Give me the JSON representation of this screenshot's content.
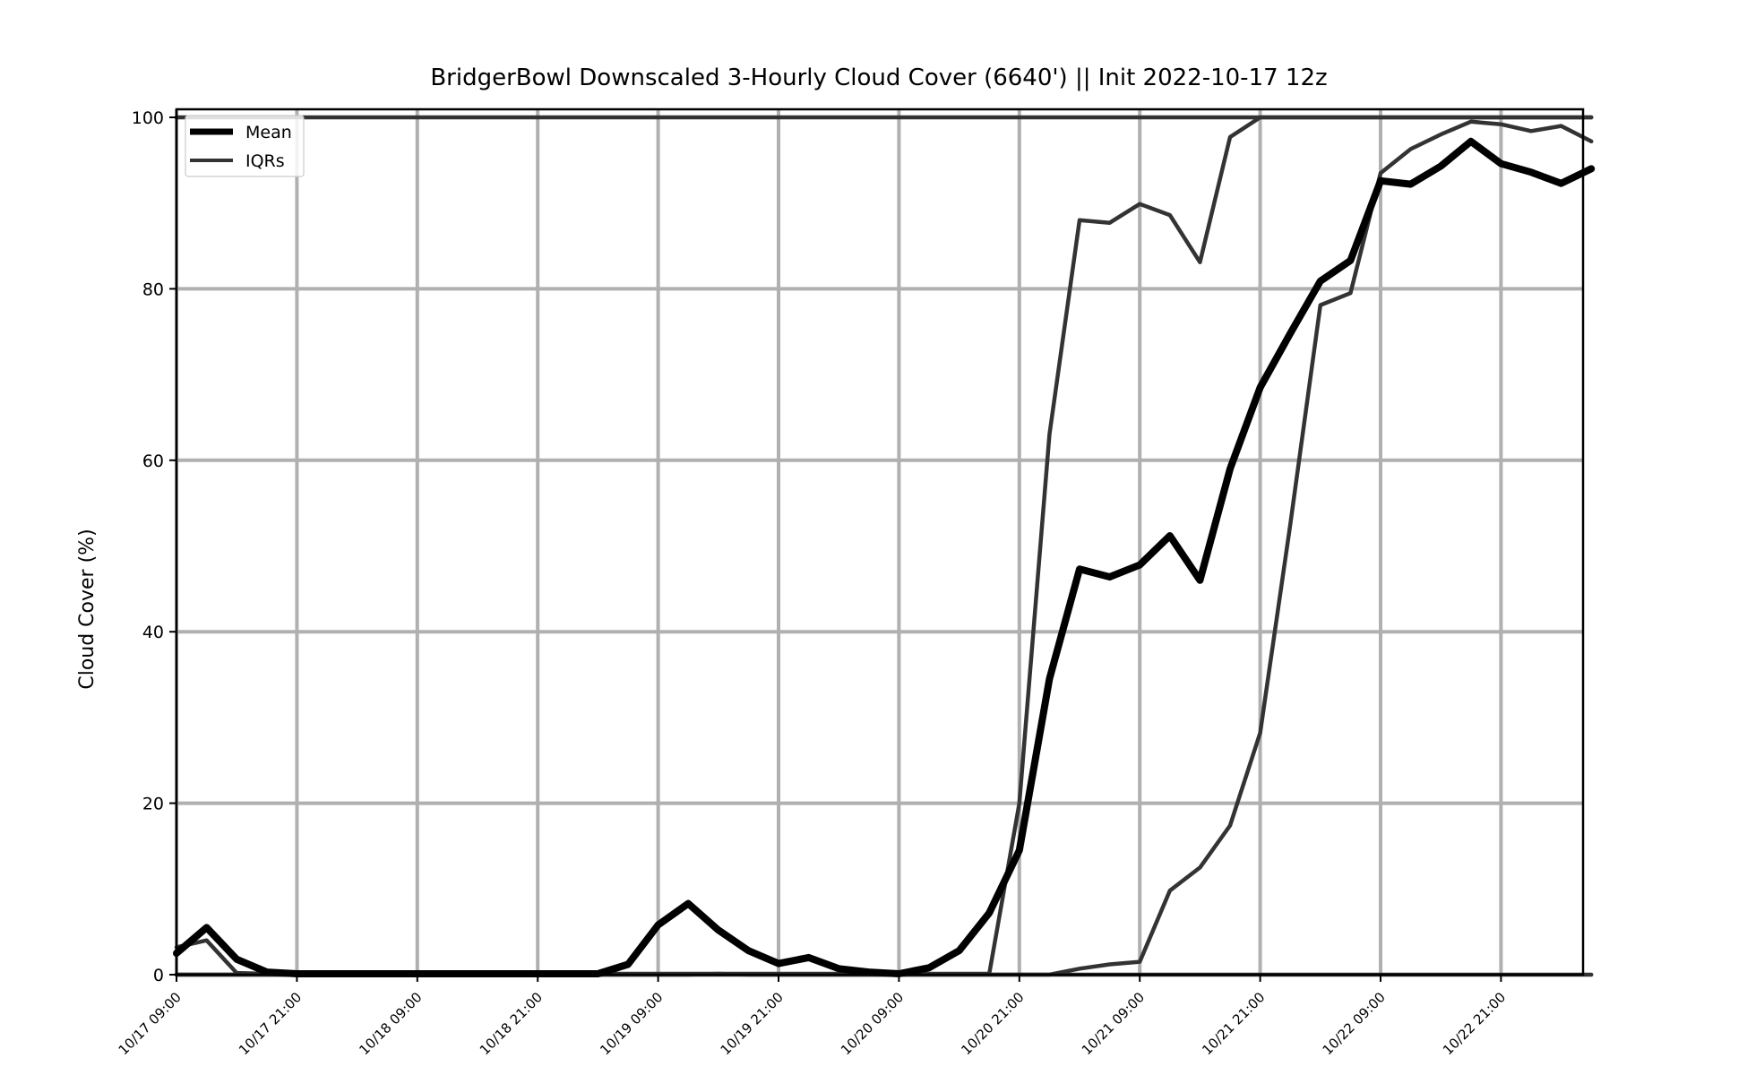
{
  "chart_data": {
    "type": "line",
    "title": "BridgerBowl Downscaled 3-Hourly Cloud Cover (6640') || Init 2022-10-17 12z",
    "xlabel": "",
    "ylabel": "Cloud Cover (%)",
    "ylim": [
      0,
      100
    ],
    "xlim": [
      "10/17 09:00",
      "10/22 12:00+12h"
    ],
    "grid": true,
    "legend_position": "top-left",
    "x_tick_labels": [
      "10/17 09:00",
      "10/17 21:00",
      "10/18 09:00",
      "10/18 21:00",
      "10/19 09:00",
      "10/19 21:00",
      "10/20 09:00",
      "10/20 21:00",
      "10/21 09:00",
      "10/21 21:00",
      "10/22 09:00",
      "10/22 21:00"
    ],
    "y_tick_labels": [
      "0",
      "20",
      "40",
      "60",
      "80",
      "100"
    ],
    "x": [
      "10/17 09:00",
      "10/17 12:00",
      "10/17 15:00",
      "10/17 18:00",
      "10/17 21:00",
      "10/18 00:00",
      "10/18 03:00",
      "10/18 06:00",
      "10/18 09:00",
      "10/18 12:00",
      "10/18 15:00",
      "10/18 18:00",
      "10/18 21:00",
      "10/19 00:00",
      "10/19 03:00",
      "10/19 06:00",
      "10/19 09:00",
      "10/19 12:00",
      "10/19 15:00",
      "10/19 18:00",
      "10/19 21:00",
      "10/20 00:00",
      "10/20 03:00",
      "10/20 06:00",
      "10/20 09:00",
      "10/20 12:00",
      "10/20 15:00",
      "10/20 18:00",
      "10/20 21:00",
      "10/21 00:00",
      "10/21 03:00",
      "10/21 06:00",
      "10/21 09:00",
      "10/21 12:00",
      "10/21 15:00",
      "10/21 18:00",
      "10/21 21:00",
      "10/22 00:00",
      "10/22 03:00",
      "10/22 06:00",
      "10/22 09:00",
      "10/22 12:00",
      "10/22 15:00",
      "10/22 18:00",
      "10/22 21:00",
      "10/23 00:00",
      "10/23 03:00",
      "10/23 06:00"
    ],
    "series": [
      {
        "name": "Mean",
        "color": "#000000",
        "values": [
          2.5,
          5.5,
          1.8,
          0.3,
          0.1,
          0.1,
          0.1,
          0.1,
          0.1,
          0.1,
          0.1,
          0.1,
          0.1,
          0.1,
          0.1,
          1.2,
          5.8,
          8.3,
          5.2,
          2.8,
          1.3,
          2.0,
          0.7,
          0.3,
          0.1,
          0.8,
          2.8,
          7.2,
          14.5,
          34.5,
          47.3,
          46.4,
          47.8,
          51.2,
          46.0,
          59.0,
          68.5,
          74.8,
          80.9,
          83.3,
          92.6,
          92.2,
          94.3,
          97.2,
          94.6,
          93.6,
          92.3,
          94.0
        ]
      },
      {
        "name": "IQRs",
        "color": "#333333",
        "values": [
          0,
          0,
          0,
          0,
          0,
          0,
          0,
          0,
          0,
          0,
          0,
          0,
          0,
          0,
          0,
          0,
          0,
          0,
          0.1,
          0,
          0,
          0,
          0,
          0,
          0,
          0,
          0,
          0,
          0,
          0,
          0.7,
          1.2,
          1.5,
          9.8,
          12.5,
          17.4,
          28.2,
          52.5,
          78.1,
          79.5,
          93.5,
          96.3,
          98.0,
          99.5,
          99.2,
          98.4,
          99.0,
          97.2
        ]
      },
      {
        "name": "",
        "color": "#333333",
        "values": [
          3.2,
          4.0,
          0.2,
          0.1,
          0.1,
          0.1,
          0.1,
          0.1,
          0.1,
          0.1,
          0.1,
          0.1,
          0.1,
          0.1,
          0.1,
          0.1,
          0.1,
          0.1,
          0.1,
          0.1,
          0.1,
          0.1,
          0.1,
          0.1,
          0.1,
          0.1,
          0.1,
          0.1,
          20.0,
          63.0,
          88.0,
          87.7,
          89.9,
          88.6,
          83.1,
          97.7,
          100,
          100,
          100,
          100,
          100,
          100,
          100,
          100,
          100,
          100,
          100,
          100
        ]
      },
      {
        "name": "",
        "color": "#333333",
        "values": [
          0,
          0,
          0,
          0,
          0,
          0,
          0,
          0,
          0,
          0,
          0,
          0,
          0,
          0,
          0,
          0,
          0,
          0,
          0,
          0,
          0,
          0,
          0,
          0,
          0,
          0,
          0,
          0,
          0,
          0,
          0,
          0,
          0,
          0,
          0,
          0,
          0,
          0,
          0,
          0,
          0,
          0,
          0,
          0,
          0,
          0,
          0,
          0
        ]
      },
      {
        "name": "",
        "color": "#333333",
        "values": [
          100,
          100,
          100,
          100,
          100,
          100,
          100,
          100,
          100,
          100,
          100,
          100,
          100,
          100,
          100,
          100,
          100,
          100,
          100,
          100,
          100,
          100,
          100,
          100,
          100,
          100,
          100,
          100,
          100,
          100,
          100,
          100,
          100,
          100,
          100,
          100,
          100,
          100,
          100,
          100,
          100,
          100,
          100,
          100,
          100,
          100,
          100,
          100
        ]
      }
    ]
  }
}
